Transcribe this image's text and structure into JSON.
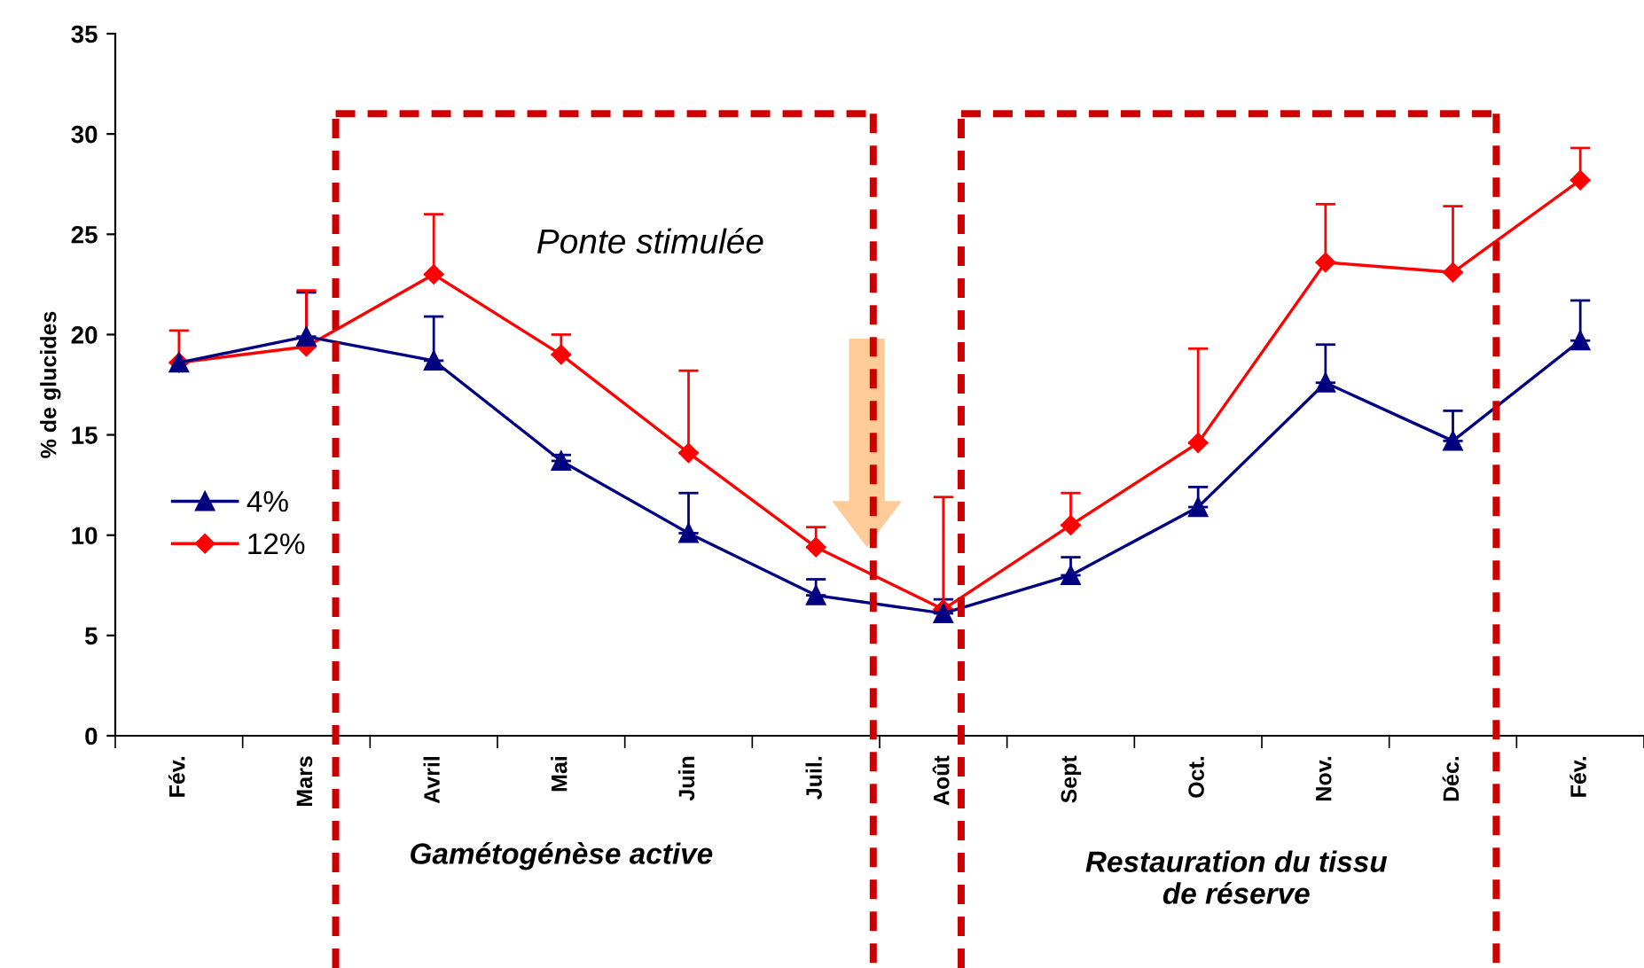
{
  "chart_data": {
    "type": "line",
    "ylabel": "% de glucides",
    "categories": [
      "Fév.",
      "Mars",
      "Avril",
      "Mai",
      "Juin",
      "Juil.",
      "Août",
      "Sept",
      "Oct.",
      "Nov.",
      "Déc.",
      "Fév."
    ],
    "series": [
      {
        "name": "4%",
        "color": "#000080",
        "marker": "triangle",
        "values": [
          18.6,
          19.9,
          18.7,
          13.7,
          10.1,
          7.0,
          6.1,
          8.0,
          11.4,
          17.6,
          14.7,
          19.7
        ],
        "errors": [
          null,
          [
            19.9,
            22.1
          ],
          [
            18.7,
            20.9
          ],
          [
            13.7,
            14.0
          ],
          [
            10.1,
            12.1
          ],
          [
            7.0,
            7.8
          ],
          [
            6.1,
            6.8
          ],
          [
            8.0,
            8.9
          ],
          [
            11.4,
            12.4
          ],
          [
            17.6,
            19.5
          ],
          [
            14.7,
            16.2
          ],
          [
            19.7,
            21.7
          ]
        ]
      },
      {
        "name": "12%",
        "color": "#ff0000",
        "marker": "diamond",
        "values": [
          18.6,
          19.4,
          23.0,
          19.0,
          14.1,
          9.4,
          6.3,
          10.5,
          14.6,
          23.6,
          23.1,
          27.7
        ],
        "errors": [
          [
            18.6,
            20.2
          ],
          [
            19.4,
            22.2
          ],
          [
            23.0,
            26.0
          ],
          [
            19.0,
            20.0
          ],
          [
            14.1,
            18.2
          ],
          [
            9.4,
            10.4
          ],
          [
            6.3,
            11.9
          ],
          [
            10.5,
            12.1
          ],
          [
            14.6,
            19.3
          ],
          [
            23.6,
            26.5
          ],
          [
            23.1,
            26.4
          ],
          [
            27.7,
            29.3
          ]
        ]
      }
    ],
    "ylim": [
      0,
      35
    ],
    "yticks": [
      0,
      5,
      10,
      15,
      20,
      25,
      30,
      35
    ],
    "grid": false,
    "legend": "left",
    "line_style": "solid",
    "annotations": [
      "Ponte stimulée",
      "Gamétogénèse active",
      "Restauration du tissu\nde réserve"
    ]
  }
}
